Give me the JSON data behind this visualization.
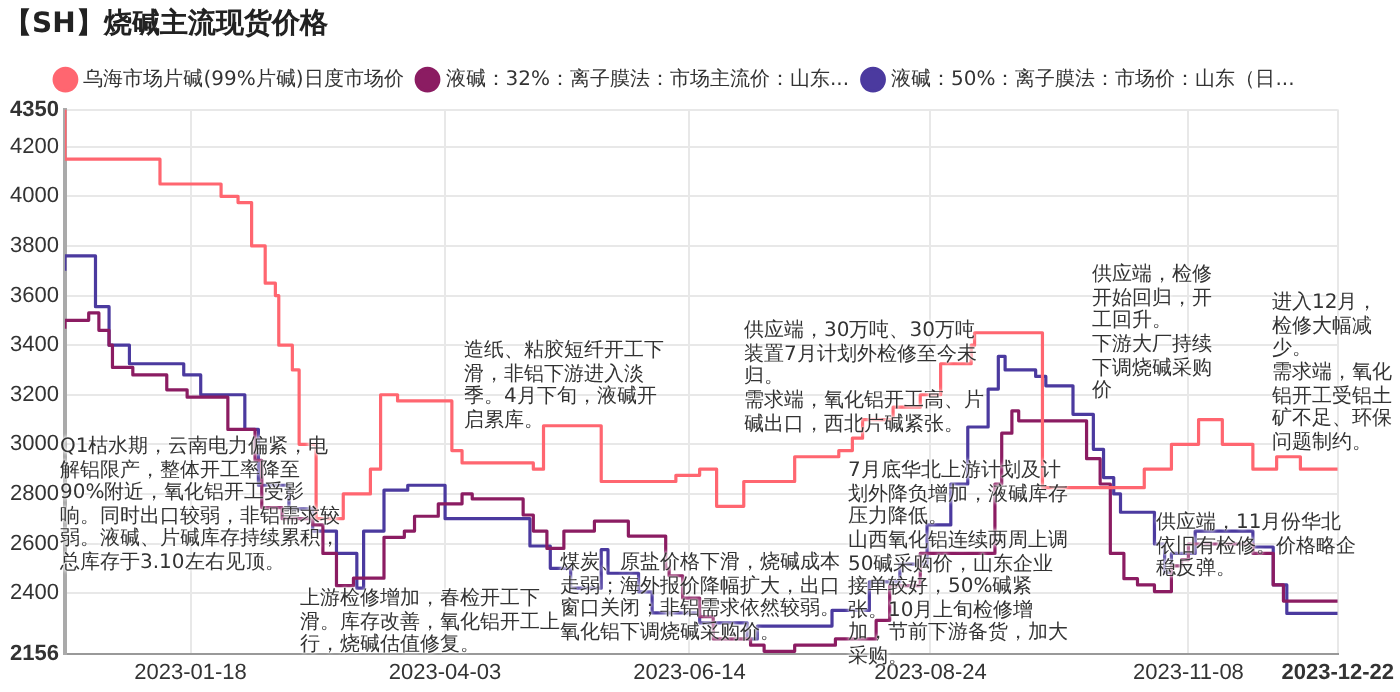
{
  "chart_data": {
    "type": "step",
    "title": "【SH】烧碱主流现货价格",
    "series": [
      {
        "name": "乌海市场片碱(99%片碱)日度市场价",
        "color": "#ff6670",
        "x": [
          "2022-12-12",
          "2023-01-09",
          "2023-01-27",
          "2023-02-01",
          "2023-02-05",
          "2023-02-09",
          "2023-02-12",
          "2023-02-13",
          "2023-02-17",
          "2023-02-19",
          "2023-02-24",
          "2023-03-04",
          "2023-03-12",
          "2023-03-15",
          "2023-03-20",
          "2023-04-05",
          "2023-04-08",
          "2023-04-29",
          "2023-05-02",
          "2023-05-19",
          "2023-06-10",
          "2023-06-17",
          "2023-06-22",
          "2023-06-30",
          "2023-07-15",
          "2023-07-28",
          "2023-08-01",
          "2023-08-04",
          "2023-08-13",
          "2023-08-21",
          "2023-08-27",
          "2023-09-05",
          "2023-09-06",
          "2023-09-26",
          "2023-10-26",
          "2023-11-03",
          "2023-11-11",
          "2023-11-18",
          "2023-11-27",
          "2023-12-04",
          "2023-12-11",
          "2023-12-18",
          "2023-12-22"
        ],
        "values": [
          4350,
          4150,
          4050,
          4000,
          3975,
          3800,
          3650,
          3600,
          3400,
          3300,
          3000,
          2700,
          2800,
          2900,
          3200,
          3175,
          2975,
          2925,
          2900,
          3075,
          2850,
          2875,
          2900,
          2750,
          2850,
          2950,
          2975,
          3025,
          3100,
          3150,
          3200,
          3325,
          3400,
          3450,
          2825,
          2900,
          3000,
          3100,
          3000,
          2900,
          2950,
          2900,
          2900
        ]
      },
      {
        "name": "液碱：32%：离子膜法：市场主流价：山东...",
        "color": "#8b1c62",
        "x": [
          "2022-12-12",
          "2022-12-19",
          "2022-12-22",
          "2022-12-25",
          "2022-12-26",
          "2023-01-01",
          "2023-01-11",
          "2023-01-17",
          "2023-01-29",
          "2023-02-06",
          "2023-02-08",
          "2023-02-14",
          "2023-02-23",
          "2023-02-26",
          "2023-03-02",
          "2023-03-07",
          "2023-03-16",
          "2023-03-22",
          "2023-03-25",
          "2023-04-01",
          "2023-04-08",
          "2023-04-11",
          "2023-04-26",
          "2023-04-29",
          "2023-05-03",
          "2023-05-08",
          "2023-05-17",
          "2023-05-27",
          "2023-06-07",
          "2023-06-08",
          "2023-06-12",
          "2023-06-17",
          "2023-06-21",
          "2023-07-02",
          "2023-07-06",
          "2023-07-15",
          "2023-07-27",
          "2023-08-08",
          "2023-08-12",
          "2023-08-21",
          "2023-09-12",
          "2023-09-14",
          "2023-09-17",
          "2023-09-19",
          "2023-10-09",
          "2023-10-13",
          "2023-10-16",
          "2023-10-20",
          "2023-10-24",
          "2023-10-29",
          "2023-11-03",
          "2023-11-06",
          "2023-11-08",
          "2023-11-27",
          "2023-12-03",
          "2023-12-06",
          "2023-12-16",
          "2023-12-22"
        ],
        "values": [
          3466,
          3500,
          3530,
          3460,
          3400,
          3310,
          3280,
          3220,
          3190,
          3060,
          2935,
          2745,
          2700,
          2675,
          2560,
          2430,
          2460,
          2625,
          2650,
          2710,
          2760,
          2800,
          2780,
          2715,
          2650,
          2580,
          2650,
          2690,
          2630,
          2500,
          2470,
          2380,
          2305,
          2215,
          2190,
          2165,
          2190,
          2215,
          2290,
          2430,
          2560,
          2840,
          3045,
          3135,
          3095,
          2942,
          2840,
          2560,
          2458,
          2433,
          2406,
          2510,
          2535,
          2598,
          2560,
          2433,
          2368,
          2368
        ]
      },
      {
        "name": "液碱：50%：离子膜法：市场价：山东（日...",
        "color": "#4b3a9f",
        "x": [
          "2022-12-12",
          "2022-12-21",
          "2022-12-25",
          "2022-12-31",
          "2023-01-16",
          "2023-01-21",
          "2023-02-03",
          "2023-02-07",
          "2023-02-16",
          "2023-02-23",
          "2023-03-02",
          "2023-03-08",
          "2023-03-10",
          "2023-03-16",
          "2023-03-23",
          "2023-04-03",
          "2023-04-28",
          "2023-05-04",
          "2023-05-10",
          "2023-05-19",
          "2023-05-21",
          "2023-05-30",
          "2023-06-03",
          "2023-06-17",
          "2023-07-01",
          "2023-07-04",
          "2023-07-26",
          "2023-08-06",
          "2023-08-15",
          "2023-08-23",
          "2023-08-30",
          "2023-09-04",
          "2023-09-10",
          "2023-09-13",
          "2023-09-15",
          "2023-09-24",
          "2023-09-27",
          "2023-10-05",
          "2023-10-11",
          "2023-10-14",
          "2023-10-17",
          "2023-10-19",
          "2023-10-29",
          "2023-11-01",
          "2023-11-03",
          "2023-11-10",
          "2023-11-27",
          "2023-12-03",
          "2023-12-07",
          "2023-12-16",
          "2023-12-22"
        ],
        "values": [
          3700,
          3760,
          3555,
          3400,
          3325,
          3280,
          3200,
          3060,
          2835,
          2740,
          2650,
          2560,
          2420,
          2650,
          2815,
          2835,
          2700,
          2590,
          2500,
          2420,
          2575,
          2480,
          2405,
          2320,
          2280,
          2215,
          2267,
          2330,
          2445,
          2517,
          2675,
          2840,
          3070,
          3223,
          3355,
          3300,
          3274,
          3236,
          3121,
          2980,
          2866,
          2800,
          2726,
          2598,
          2483,
          2560,
          2650,
          2586,
          2433,
          2318,
          2318
        ]
      }
    ],
    "xlim": [
      "2022-12-12",
      "2023-12-22"
    ],
    "xticks": [
      "2023-01-18",
      "2023-04-03",
      "2023-06-14",
      "2023-08-24",
      "2023-11-08",
      "2023-12-22"
    ],
    "ylim": [
      2156,
      4350
    ],
    "yticks": [
      2156,
      2400,
      2600,
      2800,
      3000,
      3200,
      3400,
      3600,
      3800,
      4000,
      4200,
      4350
    ],
    "grid": true,
    "legend": "top",
    "marker": "none",
    "annotations": [
      "Q1枯水期，云南电力偏紧，电解铝限产，整体开工率降至90%附近，氧化铝开工受影响。同时出口较弱，非铝需求较弱。液碱、片碱库存持续累积，总库存于3.10左右见顶。",
      "上游检修增加，春检开工下滑。库存改善，氧化铝开工上行，烧碱估值修复。",
      "造纸、粘胶短纤开工下滑，非铝下游进入淡季。4月下旬，液碱开启累库。",
      "煤炭、原盐价格下滑，烧碱成本走弱；海外报价降幅扩大，出口窗口关闭；非铝需求依然较弱。氧化铝下调烧碱采购价。",
      "供应端，30万吨、30万吨装置7月计划外检修至今未归。",
      "需求端，氧化铝开工高、片碱出口，西北片碱紧张。",
      "7月底华北上游计划及计划外降负增加，液碱库存压力降低。",
      "山西氧化铝连续两周上调50碱采购价，山东企业接单较好，50%碱紧张。10月上旬检修增加，节前下游备货，加大采购。",
      "供应端，检修开始回归，开工回升。",
      "下游大厂持续下调烧碱采购价",
      "进入12月，检修大幅减少。",
      "需求端，氧化铝开工受铝土矿不足、环保问题制约。",
      "供应端，11月份华北依旧有检修。价格略企稳反弹。"
    ]
  }
}
